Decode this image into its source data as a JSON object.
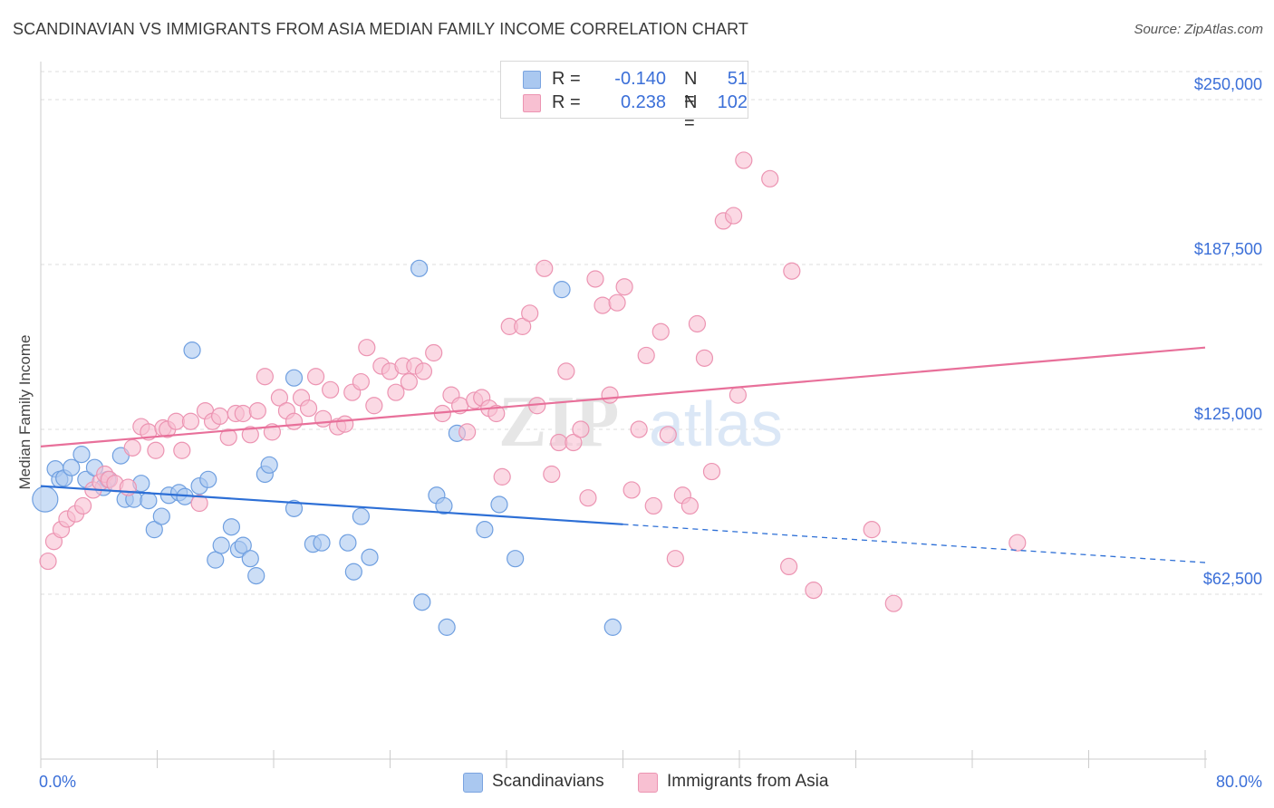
{
  "title": "SCANDINAVIAN VS IMMIGRANTS FROM ASIA MEDIAN FAMILY INCOME CORRELATION CHART",
  "source": "Source: ZipAtlas.com",
  "watermark": {
    "part1": "ZIP",
    "part2": "atlas"
  },
  "legend": {
    "rows": [
      {
        "r_label": "R =",
        "r_value": "-0.140",
        "n_label": "N =",
        "n_value": "51",
        "color": "#aac8f0",
        "border": "#7aa3e0"
      },
      {
        "r_label": "R =",
        "r_value": "0.238",
        "n_label": "N =",
        "n_value": "102",
        "color": "#f8c0d2",
        "border": "#ec94b2"
      }
    ]
  },
  "bottom_legend": [
    {
      "label": "Scandinavians",
      "color": "#aac8f0",
      "border": "#7aa3e0"
    },
    {
      "label": "Immigrants from Asia",
      "color": "#f8c0d2",
      "border": "#ec94b2"
    }
  ],
  "chart_data": {
    "type": "scatter",
    "title": "SCANDINAVIAN VS IMMIGRANTS FROM ASIA MEDIAN FAMILY INCOME CORRELATION CHART",
    "xlabel": "",
    "ylabel": "Median Family Income",
    "xlim": [
      0,
      80
    ],
    "ylim": [
      0,
      262000
    ],
    "x_tick_labels": [
      "0.0%",
      "80.0%"
    ],
    "y_ticks": [
      62500,
      125000,
      187500,
      250000
    ],
    "y_tick_labels": [
      "$62,500",
      "$125,000",
      "$187,500",
      "$250,000"
    ],
    "grid": "horizontal dashed",
    "legend_position": "top-center",
    "colors": {
      "blue_fill": "#aac8f0",
      "blue_stroke": "#6f9fe0",
      "blue_line": "#2d6fd6",
      "pink_fill": "#f8c0d2",
      "pink_stroke": "#ec94b2",
      "pink_line": "#e8709a",
      "axis_label": "#3b6fd8"
    },
    "series": [
      {
        "name": "Scandinavians",
        "trend": {
          "x0": 0,
          "y0": 103500,
          "x1": 40,
          "y1": 89000,
          "x_dash_end": 80,
          "y_dash_end": 74500
        },
        "points": [
          [
            0.3,
            98500,
            14
          ],
          [
            1,
            110000,
            9
          ],
          [
            1.3,
            106000,
            9
          ],
          [
            1.6,
            106500,
            9
          ],
          [
            2.1,
            110500,
            9
          ],
          [
            2.8,
            115500,
            9
          ],
          [
            3.1,
            106000,
            9
          ],
          [
            3.7,
            110500,
            9
          ],
          [
            4.3,
            103000,
            9
          ],
          [
            4.6,
            106000,
            9
          ],
          [
            5.5,
            115000,
            9
          ],
          [
            5.8,
            98500,
            9
          ],
          [
            6.4,
            98500,
            9
          ],
          [
            6.9,
            104500,
            9
          ],
          [
            7.4,
            98000,
            9
          ],
          [
            7.8,
            87000,
            9
          ],
          [
            8.3,
            92000,
            9
          ],
          [
            8.8,
            100000,
            9
          ],
          [
            9.5,
            101000,
            9
          ],
          [
            9.9,
            99500,
            9
          ],
          [
            10.4,
            155000,
            9
          ],
          [
            10.9,
            103500,
            9
          ],
          [
            11.5,
            106000,
            9
          ],
          [
            12,
            75500,
            9
          ],
          [
            12.4,
            81000,
            9
          ],
          [
            13.1,
            88000,
            9
          ],
          [
            13.6,
            79500,
            9
          ],
          [
            13.9,
            81000,
            9
          ],
          [
            14.4,
            76000,
            9
          ],
          [
            14.8,
            69500,
            9
          ],
          [
            15.4,
            108000,
            9
          ],
          [
            15.7,
            111500,
            9
          ],
          [
            17.4,
            95000,
            9
          ],
          [
            17.4,
            144500,
            9
          ],
          [
            18.7,
            81500,
            9
          ],
          [
            19.3,
            82000,
            9
          ],
          [
            21.1,
            82000,
            9
          ],
          [
            21.5,
            71000,
            9
          ],
          [
            22,
            92000,
            9
          ],
          [
            22.6,
            76500,
            9
          ],
          [
            26,
            186000,
            9
          ],
          [
            26.2,
            59500,
            9
          ],
          [
            27.2,
            100000,
            9
          ],
          [
            27.7,
            96000,
            9
          ],
          [
            27.9,
            50000,
            9
          ],
          [
            28.6,
            123500,
            9
          ],
          [
            30.5,
            87000,
            9
          ],
          [
            31.5,
            96500,
            9
          ],
          [
            32.6,
            76000,
            9
          ],
          [
            35.8,
            178000,
            9
          ],
          [
            39.3,
            50000,
            9
          ]
        ]
      },
      {
        "name": "Immigrants from Asia",
        "trend": {
          "x0": 0,
          "y0": 118500,
          "x1": 80,
          "y1": 156000
        },
        "points": [
          [
            0.5,
            75000,
            9
          ],
          [
            0.9,
            82500,
            9
          ],
          [
            1.4,
            87000,
            9
          ],
          [
            1.8,
            91000,
            9
          ],
          [
            2.4,
            93000,
            9
          ],
          [
            2.9,
            96000,
            9
          ],
          [
            3.6,
            102000,
            9
          ],
          [
            4.1,
            105000,
            9
          ],
          [
            4.4,
            108000,
            9
          ],
          [
            4.7,
            106000,
            9
          ],
          [
            5.1,
            104500,
            9
          ],
          [
            6,
            103000,
            9
          ],
          [
            6.3,
            118000,
            9
          ],
          [
            6.9,
            126000,
            9
          ],
          [
            7.4,
            124000,
            9
          ],
          [
            7.9,
            117000,
            9
          ],
          [
            8.4,
            125500,
            9
          ],
          [
            8.7,
            125000,
            9
          ],
          [
            9.3,
            128000,
            9
          ],
          [
            9.7,
            117000,
            9
          ],
          [
            10.3,
            128000,
            9
          ],
          [
            10.9,
            97000,
            9
          ],
          [
            11.3,
            132000,
            9
          ],
          [
            11.8,
            128000,
            9
          ],
          [
            12.3,
            130000,
            9
          ],
          [
            12.9,
            122000,
            9
          ],
          [
            13.4,
            131000,
            9
          ],
          [
            13.9,
            131000,
            9
          ],
          [
            14.4,
            123000,
            9
          ],
          [
            14.9,
            132000,
            9
          ],
          [
            15.4,
            145000,
            9
          ],
          [
            15.9,
            124000,
            9
          ],
          [
            16.4,
            137000,
            9
          ],
          [
            16.9,
            132000,
            9
          ],
          [
            17.4,
            128000,
            9
          ],
          [
            17.9,
            137000,
            9
          ],
          [
            18.4,
            133000,
            9
          ],
          [
            18.9,
            145000,
            9
          ],
          [
            19.4,
            129000,
            9
          ],
          [
            19.9,
            140000,
            9
          ],
          [
            20.4,
            126000,
            9
          ],
          [
            20.9,
            127000,
            9
          ],
          [
            21.4,
            139000,
            9
          ],
          [
            22,
            143000,
            9
          ],
          [
            22.4,
            156000,
            9
          ],
          [
            22.9,
            134000,
            9
          ],
          [
            23.4,
            149000,
            9
          ],
          [
            24,
            147000,
            9
          ],
          [
            24.4,
            139000,
            9
          ],
          [
            24.9,
            149000,
            9
          ],
          [
            25.3,
            143000,
            9
          ],
          [
            25.7,
            149000,
            9
          ],
          [
            26.3,
            147000,
            9
          ],
          [
            27,
            154000,
            9
          ],
          [
            27.6,
            131000,
            9
          ],
          [
            28.2,
            138000,
            9
          ],
          [
            28.8,
            134000,
            9
          ],
          [
            29.3,
            124000,
            9
          ],
          [
            29.8,
            136000,
            9
          ],
          [
            30.3,
            137000,
            9
          ],
          [
            30.8,
            133000,
            9
          ],
          [
            31.3,
            131000,
            9
          ],
          [
            31.7,
            107000,
            9
          ],
          [
            32.2,
            164000,
            9
          ],
          [
            33.1,
            164000,
            9
          ],
          [
            33.6,
            169000,
            9
          ],
          [
            34.1,
            134000,
            9
          ],
          [
            34.6,
            186000,
            9
          ],
          [
            35.1,
            108000,
            9
          ],
          [
            35.6,
            120000,
            9
          ],
          [
            36.1,
            147000,
            9
          ],
          [
            36.6,
            120000,
            9
          ],
          [
            37.1,
            125000,
            9
          ],
          [
            37.6,
            99000,
            9
          ],
          [
            38.1,
            182000,
            9
          ],
          [
            38.6,
            172000,
            9
          ],
          [
            39.1,
            138000,
            9
          ],
          [
            39.6,
            173000,
            9
          ],
          [
            40.1,
            179000,
            9
          ],
          [
            40.6,
            102000,
            9
          ],
          [
            41.1,
            125000,
            9
          ],
          [
            41.6,
            153000,
            9
          ],
          [
            42.1,
            96000,
            9
          ],
          [
            42.6,
            162000,
            9
          ],
          [
            43.1,
            123000,
            9
          ],
          [
            43.6,
            76000,
            9
          ],
          [
            44.1,
            100000,
            9
          ],
          [
            44.6,
            96000,
            9
          ],
          [
            45.1,
            165000,
            9
          ],
          [
            45.6,
            152000,
            9
          ],
          [
            46.1,
            109000,
            9
          ],
          [
            46.9,
            204000,
            9
          ],
          [
            47.6,
            206000,
            9
          ],
          [
            48.3,
            227000,
            9
          ],
          [
            50.1,
            220000,
            9
          ],
          [
            51.4,
            73000,
            9
          ],
          [
            51.6,
            185000,
            9
          ],
          [
            53.1,
            64000,
            9
          ],
          [
            57.1,
            87000,
            9
          ],
          [
            58.6,
            59000,
            9
          ],
          [
            67.1,
            82000,
            9
          ],
          [
            47.9,
            138000,
            9
          ]
        ]
      }
    ]
  }
}
